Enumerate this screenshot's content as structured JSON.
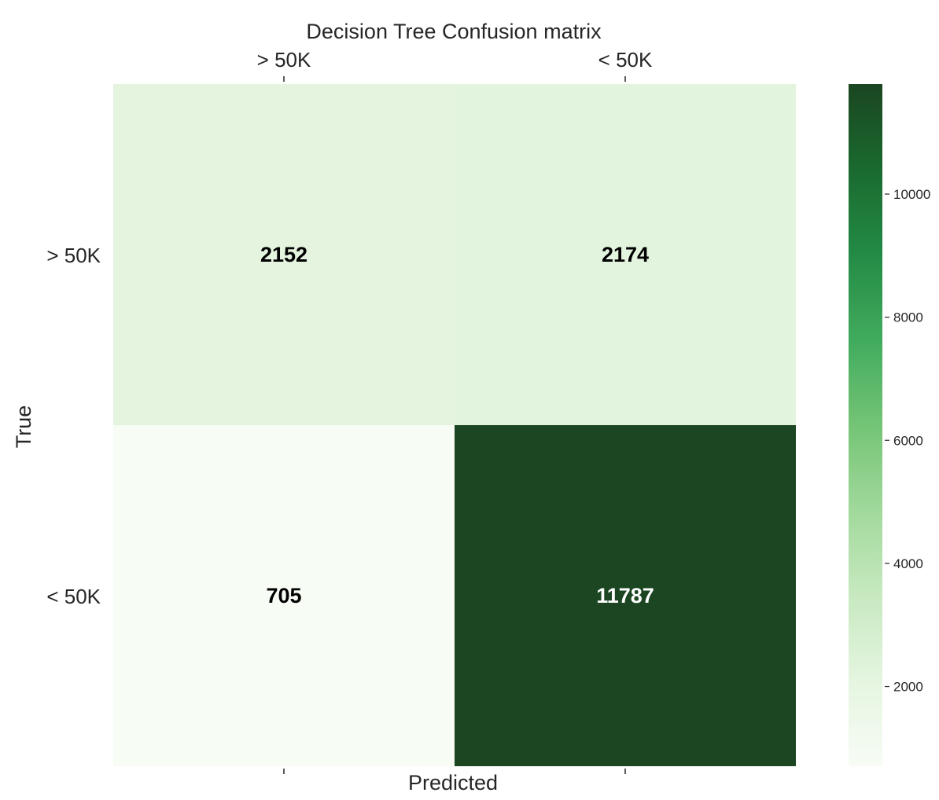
{
  "chart_data": {
    "type": "heatmap",
    "title": "Decision Tree Confusion matrix",
    "xlabel": "Predicted",
    "ylabel": "True",
    "x_categories": [
      "> 50K",
      "< 50K"
    ],
    "y_categories": [
      "> 50K",
      "< 50K"
    ],
    "values": [
      [
        2152,
        2174
      ],
      [
        705,
        11787
      ]
    ],
    "x_tick_position": "top",
    "colormap": "Greens",
    "colorbar": {
      "range": [
        705,
        11787
      ],
      "ticks": [
        2000,
        4000,
        6000,
        8000,
        10000
      ],
      "tick_labels": [
        "2000",
        "4000",
        "6000",
        "8000",
        "10000"
      ]
    },
    "annotation_colors": {
      "light_cell": "#000000",
      "dark_cell": "#ffffff"
    },
    "colors": {
      "min": "#f7fcf5",
      "max": "#1b4621"
    },
    "grid": false
  }
}
